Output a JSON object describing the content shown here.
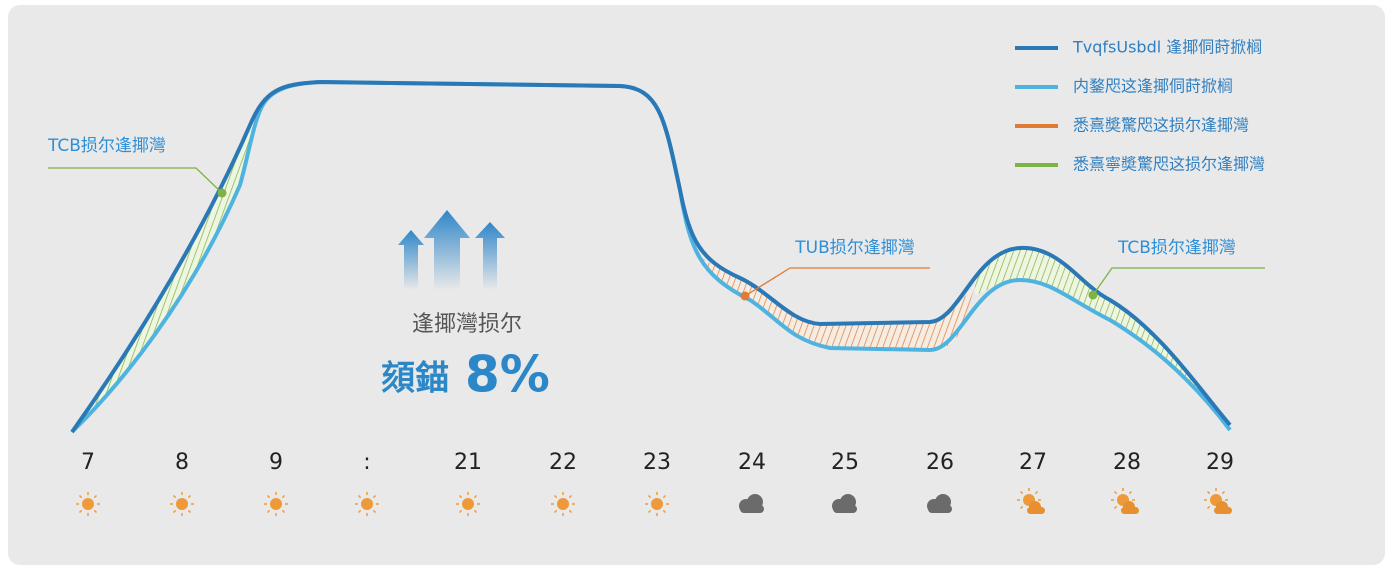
{
  "legend": [
    "TvqfsUsbdl 逢揶侗莳掀榈",
    "内鍪咫这逢揶侗莳掀榈",
    "悉熹奬驚咫这损尔逢揶灣",
    "悉熹寧奬驚咫这损尔逢揶灣"
  ],
  "annotations": [
    "TCB损尔逢揶灣",
    "TUB损尔逢揶灣",
    "TCB损尔逢揶灣"
  ],
  "center": {
    "label": "逢揶灣损尔",
    "prefix": "頦錨",
    "value": "8%"
  },
  "x_labels": [
    "7",
    "8",
    "9",
    ":",
    "21",
    "22",
    "23",
    "24",
    "25",
    "26",
    "27",
    "28",
    "29"
  ]
}
